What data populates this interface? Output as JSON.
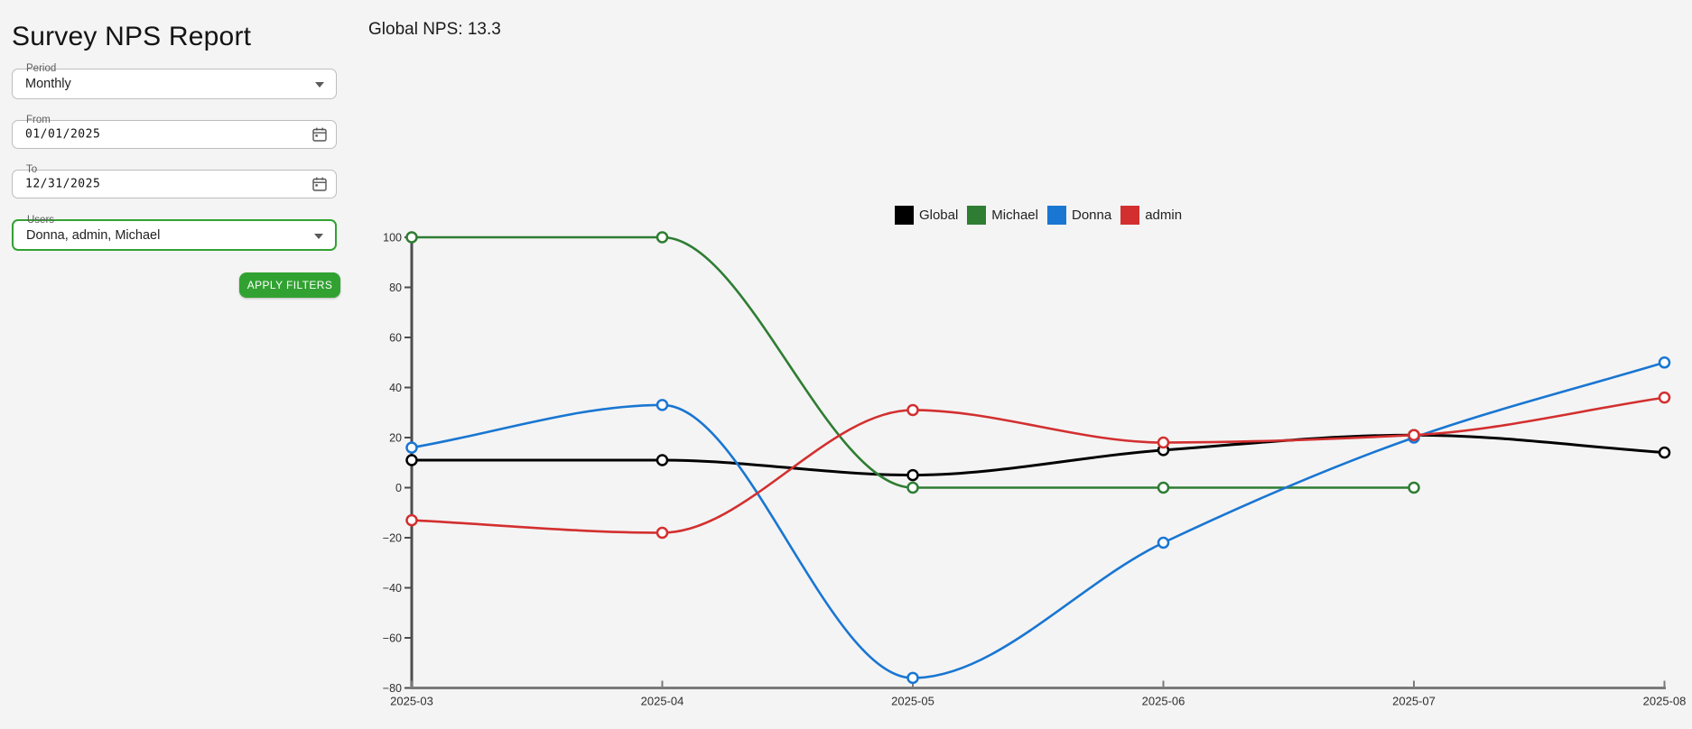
{
  "page": {
    "title": "Survey NPS Report",
    "background_color": "#f4f4f4",
    "accent_green": "#31a231"
  },
  "filters": {
    "period": {
      "label": "Period",
      "value": "Monthly"
    },
    "from": {
      "label": "From",
      "value": "01/01/2025"
    },
    "to": {
      "label": "To",
      "value": "12/31/2025"
    },
    "users": {
      "label": "Users",
      "value": "Donna, admin, Michael"
    },
    "apply_button": "APPLY FILTERS"
  },
  "icons": {
    "period_field": "chevron-down-icon",
    "from_field": "calendar-icon",
    "to_field": "calendar-icon",
    "users_field": "chevron-down-icon"
  },
  "chart_data": {
    "type": "line",
    "title": "Global NPS: 13.3",
    "xlabel": "",
    "ylabel": "",
    "x": [
      "2025-03",
      "2025-04",
      "2025-05",
      "2025-06",
      "2025-07",
      "2025-08"
    ],
    "series": [
      {
        "name": "Global",
        "color": "#000000",
        "values": [
          11,
          11,
          5,
          15,
          21,
          14
        ]
      },
      {
        "name": "Michael",
        "color": "#2e7d32",
        "values": [
          100,
          100,
          0,
          0,
          0,
          null
        ]
      },
      {
        "name": "Donna",
        "color": "#1976d2",
        "values": [
          16,
          33,
          -76,
          -22,
          20,
          50
        ]
      },
      {
        "name": "admin",
        "color": "#d32f2f",
        "values": [
          -13,
          -18,
          31,
          18,
          21,
          36
        ]
      }
    ],
    "ylim": [
      -80,
      100
    ],
    "yticks": [
      100,
      80,
      60,
      40,
      20,
      0,
      -20,
      -40,
      -60,
      -80
    ],
    "legend_position": "top-center",
    "marker": "open-circle",
    "smooth": true,
    "grid": false
  }
}
